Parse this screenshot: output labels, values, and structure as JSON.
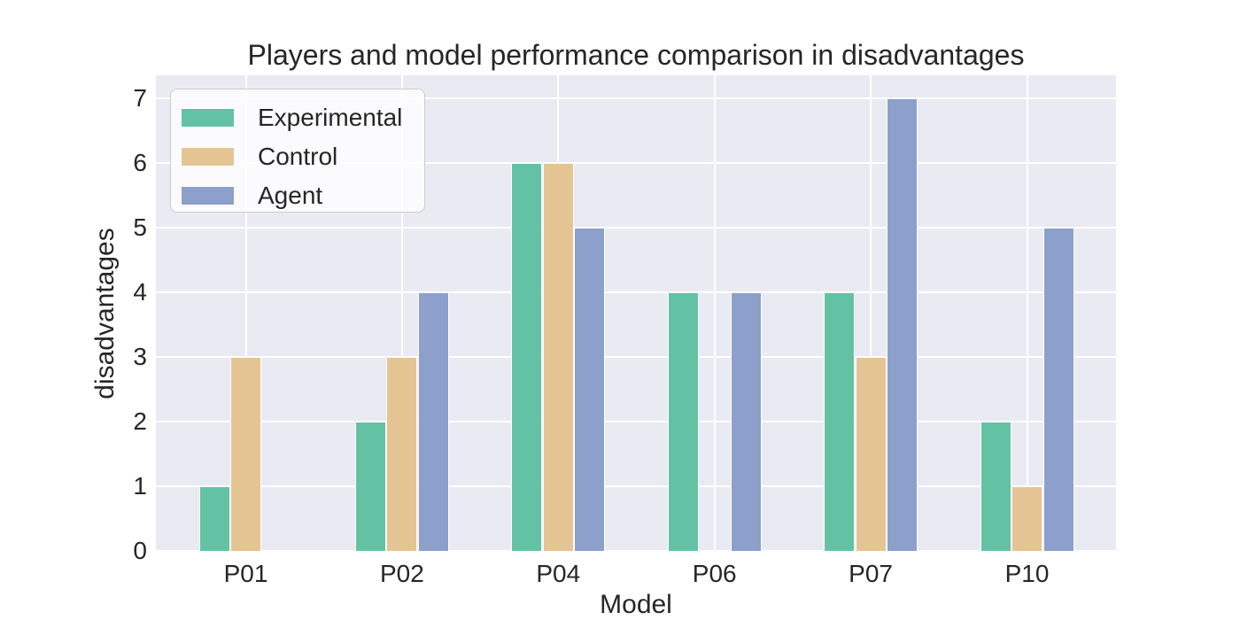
{
  "chart_data": {
    "type": "bar",
    "title": "Players and model performance comparison in disadvantages",
    "xlabel": "Model",
    "ylabel": "disadvantages",
    "categories": [
      "P01",
      "P02",
      "P04",
      "P06",
      "P07",
      "P10"
    ],
    "series": [
      {
        "name": "Experimental",
        "color": "#63c2a3",
        "values": [
          1,
          2,
          6,
          4,
          4,
          2
        ]
      },
      {
        "name": "Control",
        "color": "#e5c494",
        "values": [
          3,
          3,
          6,
          0,
          3,
          1
        ]
      },
      {
        "name": "Agent",
        "color": "#8da0cb",
        "values": [
          0,
          4,
          5,
          4,
          7,
          5
        ]
      }
    ],
    "ylim": [
      0,
      7.35
    ],
    "yticks": [
      0,
      1,
      2,
      3,
      4,
      5,
      6,
      7
    ],
    "grid": true,
    "legend_position": "upper left",
    "colors": {
      "plot_background": "#eaeaf2",
      "grid": "#ffffff",
      "text": "#262626",
      "figure_background": "#ffffff"
    }
  }
}
